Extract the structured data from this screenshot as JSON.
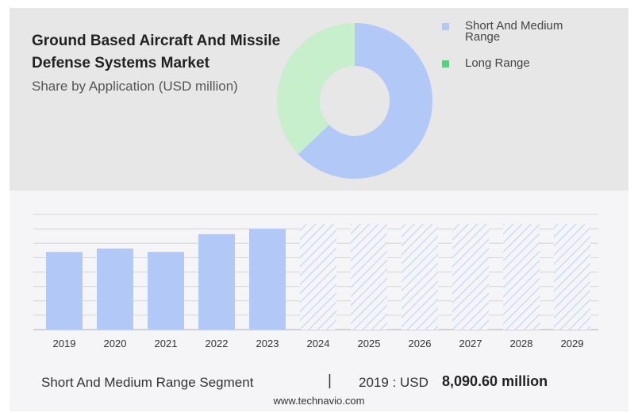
{
  "header": {
    "title": "Ground Based Aircraft And Missile Defense Systems Market",
    "subtitle": "Share by Application (USD million)"
  },
  "legend": [
    {
      "label": "Short And Medium Range",
      "color": "#b2c9f7"
    },
    {
      "label": "Long Range",
      "color": "#4ed67f"
    }
  ],
  "chart_data": [
    {
      "type": "pie",
      "donut": true,
      "slices": [
        {
          "label": "Short And Medium Range",
          "value": 63,
          "color": "#b2c9f7"
        },
        {
          "label": "Long Range",
          "value": 37,
          "color": "#c7efcc"
        }
      ]
    },
    {
      "type": "bar",
      "categories": [
        "2019",
        "2020",
        "2021",
        "2022",
        "2023",
        "2024",
        "2025",
        "2026",
        "2027",
        "2028",
        "2029"
      ],
      "values": [
        8090.6,
        8450,
        8100,
        9950,
        10500,
        null,
        null,
        null,
        null,
        null,
        null
      ],
      "forecast_categories": [
        "2024",
        "2025",
        "2026",
        "2027",
        "2028",
        "2029"
      ],
      "forecast_hatched": true,
      "ylim": [
        0,
        12000
      ],
      "gridlines": 8,
      "grid": true,
      "bar_color": "#b2c9f7",
      "forecast_color": "#c3d5fb"
    }
  ],
  "footer": {
    "segment": "Short And Medium Range Segment",
    "separator": "|",
    "year_label": "2019 : USD",
    "value": "8,090.60 million",
    "source": "www.technavio.com"
  }
}
